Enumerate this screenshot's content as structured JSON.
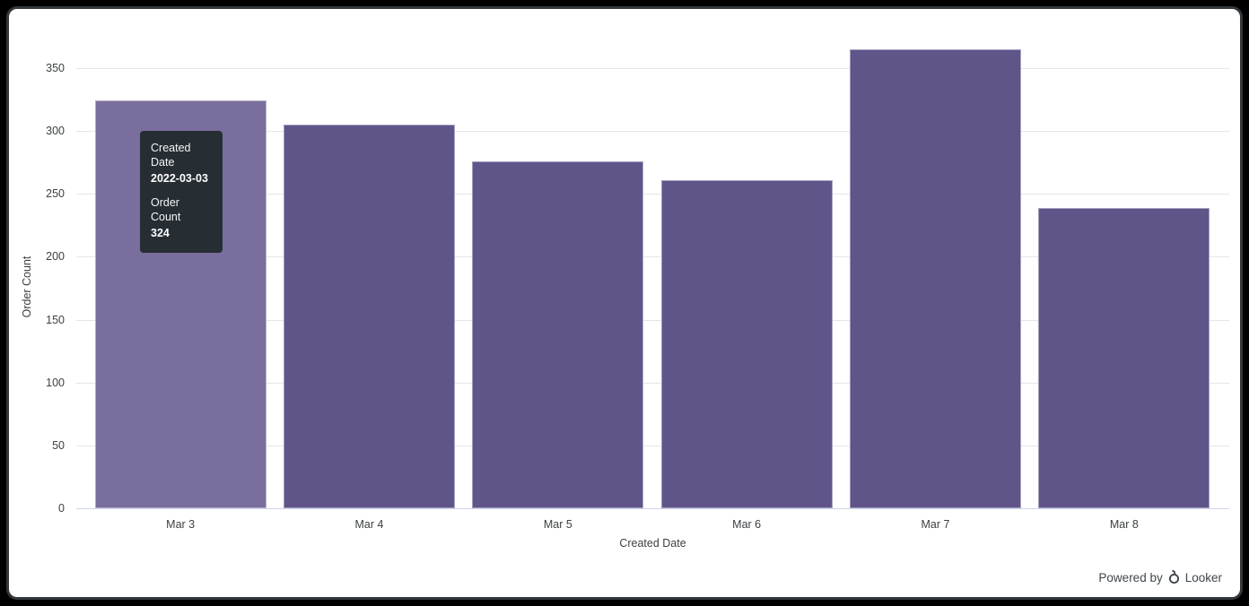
{
  "chart_data": {
    "type": "bar",
    "title": "",
    "categories": [
      "Mar 3",
      "Mar 4",
      "Mar 5",
      "Mar 6",
      "Mar 7",
      "Mar 8"
    ],
    "values": [
      324,
      305,
      276,
      261,
      365,
      239
    ],
    "xlabel": "Created Date",
    "ylabel": "Order Count",
    "ylim": [
      0,
      380
    ],
    "y_ticks": [
      0,
      50,
      100,
      150,
      200,
      250,
      300,
      350
    ],
    "grid": true,
    "legend": "none",
    "bar_color": "#605589",
    "bar_color_highlight": "#7A6E9E",
    "highlighted_index": 0
  },
  "tooltip": {
    "rows": [
      {
        "label": "Created Date",
        "value": "2022-03-03"
      },
      {
        "label": "Order Count",
        "value": "324"
      }
    ],
    "background": "#262D33",
    "text_color": "#FFFFFF"
  },
  "footer": {
    "powered_by": "Powered by",
    "brand": "Looker"
  },
  "colors": {
    "axis_text": "#3C4043",
    "gridline": "#E6E6E6",
    "axis_line": "#CCD6EB",
    "frame_border": "#33383C",
    "background": "#FFFFFF"
  }
}
